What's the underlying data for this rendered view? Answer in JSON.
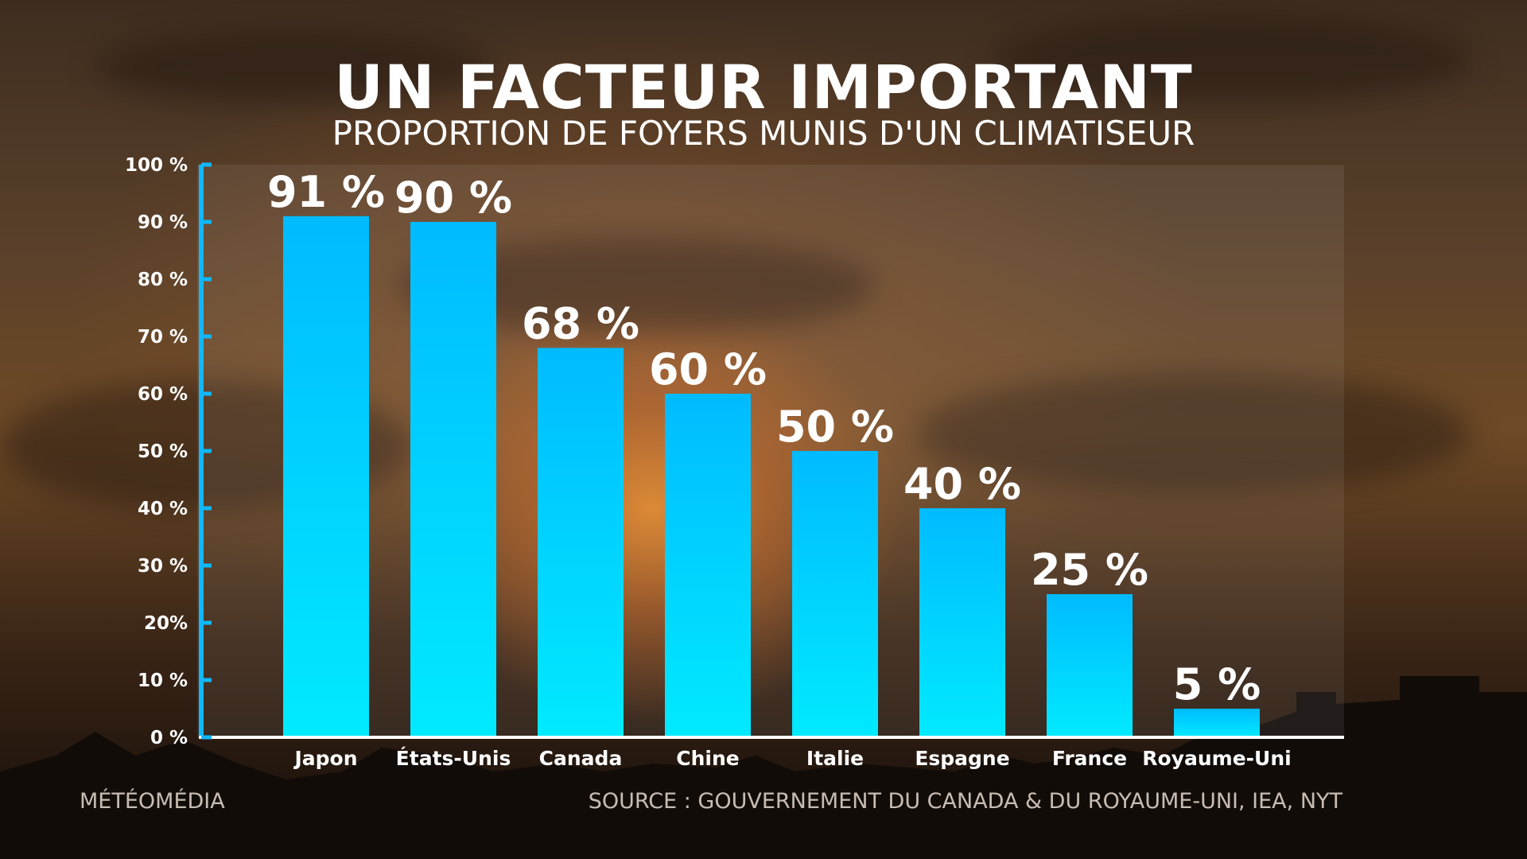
{
  "header": {
    "title": "UN FACTEUR IMPORTANT",
    "subtitle": "PROPORTION DE FOYERS MUNIS D'UN CLIMATISEUR"
  },
  "footer": {
    "brand": "MÉTÉOMÉDIA",
    "source": "SOURCE : GOUVERNEMENT DU CANADA & DU ROYAUME-UNI, IEA, NYT"
  },
  "colors": {
    "bar_top": "#00bbff",
    "bar_bottom": "#00eaff",
    "axis": "#10b8ff",
    "baseline": "#ffffff"
  },
  "chart_data": {
    "type": "bar",
    "categories": [
      "Japon",
      "États-Unis",
      "Canada",
      "Chine",
      "Italie",
      "Espagne",
      "France",
      "Royaume-Uni"
    ],
    "values": [
      91,
      90,
      68,
      60,
      50,
      40,
      25,
      5
    ],
    "value_labels": [
      "91 %",
      "90 %",
      "68 %",
      "60 %",
      "50 %",
      "40 %",
      "25 %",
      "5 %"
    ],
    "ylim": [
      0,
      100
    ],
    "ytick_labels": [
      "0 %",
      "10 %",
      "20%",
      "30 %",
      "40 %",
      "50 %",
      "60 %",
      "70 %",
      "80 %",
      "90 %",
      "100 %"
    ],
    "grid": false,
    "legend": "none"
  }
}
